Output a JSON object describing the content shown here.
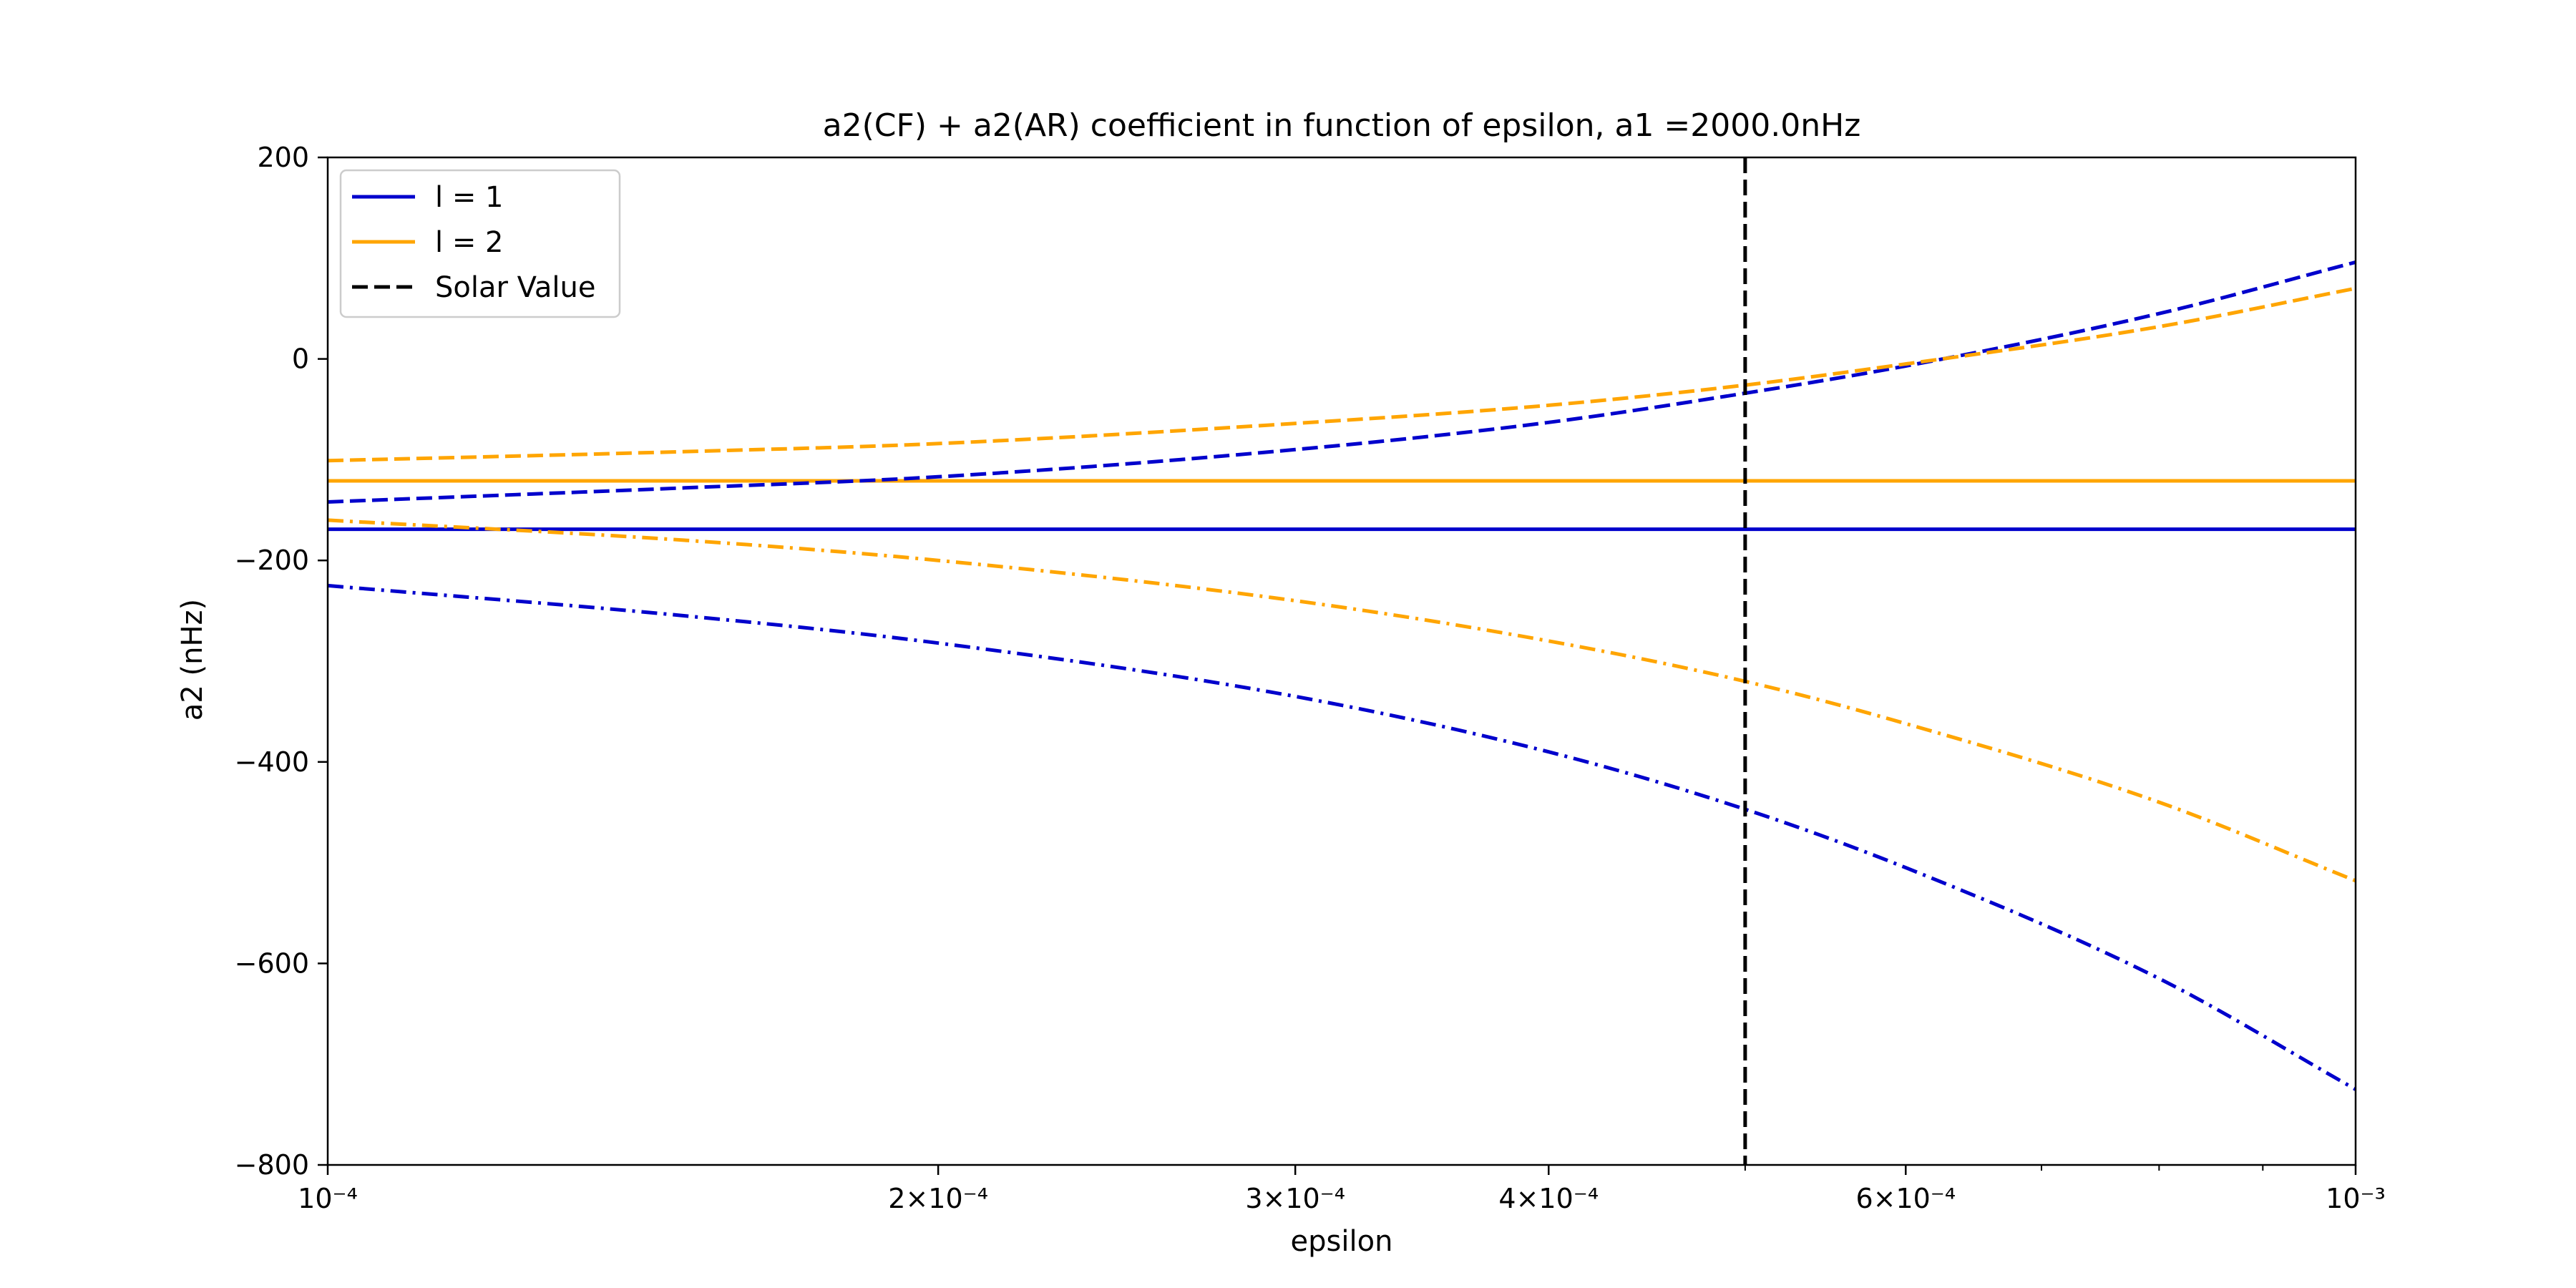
{
  "chart_data": {
    "type": "line",
    "title": "a2(CF) + a2(AR) coefficient in function of epsilon, a1 =2000.0nHz",
    "xlabel": "epsilon",
    "ylabel": "a2 (nHz)",
    "xscale": "log",
    "xlim": [
      0.0001,
      0.001
    ],
    "ylim": [
      -800,
      200
    ],
    "x_ticks": [
      {
        "value": 0.0001,
        "label": "10⁻⁴"
      },
      {
        "value": 0.0002,
        "label": "2×10⁻⁴"
      },
      {
        "value": 0.0003,
        "label": "3×10⁻⁴"
      },
      {
        "value": 0.0004,
        "label": "4×10⁻⁴"
      },
      {
        "value": 0.0006,
        "label": "6×10⁻⁴"
      },
      {
        "value": 0.001,
        "label": "10⁻³"
      }
    ],
    "y_ticks": [
      {
        "value": 200,
        "label": "200"
      },
      {
        "value": 0,
        "label": "0"
      },
      {
        "value": -200,
        "label": "−200"
      },
      {
        "value": -400,
        "label": "−400"
      },
      {
        "value": -600,
        "label": "−600"
      },
      {
        "value": -800,
        "label": "−800"
      }
    ],
    "grid": false,
    "legend_position": "upper-left",
    "legend": [
      {
        "label": "l = 1",
        "color": "#0000cc",
        "style": "solid"
      },
      {
        "label": "l = 2",
        "color": "#ffa500",
        "style": "solid"
      },
      {
        "label": "Solar Value",
        "color": "#000000",
        "style": "dashed"
      }
    ],
    "x": [
      0.0001,
      0.00015,
      0.0002,
      0.0003,
      0.0004,
      0.0005,
      0.0006,
      0.0008,
      0.001
    ],
    "series": [
      {
        "color": "#0000cc",
        "style": "solid",
        "values": [
          -169,
          -169,
          -169,
          -169,
          -169,
          -169,
          -169,
          -169,
          -169
        ]
      },
      {
        "color": "#ffa500",
        "style": "solid",
        "values": [
          -121,
          -121,
          -121,
          -121,
          -121,
          -121,
          -121,
          -121,
          -121
        ]
      },
      {
        "color": "#0000cc",
        "style": "dashed",
        "values": [
          -142,
          -128,
          -117,
          -90,
          -63,
          -34,
          -7,
          45,
          96
        ]
      },
      {
        "color": "#ffa500",
        "style": "dashed",
        "values": [
          -101,
          -92,
          -84,
          -64,
          -46,
          -26,
          -5,
          32,
          70
        ]
      },
      {
        "color": "#0000cc",
        "style": "dashdot",
        "values": [
          -225,
          -255,
          -282,
          -335,
          -390,
          -447,
          -505,
          -615,
          -725
        ]
      },
      {
        "color": "#ffa500",
        "style": "dashdot",
        "values": [
          -160,
          -180,
          -200,
          -240,
          -280,
          -320,
          -362,
          -440,
          -518
        ]
      }
    ],
    "vlines": [
      {
        "x": 0.0005,
        "color": "#000000",
        "style": "dashed"
      }
    ]
  }
}
